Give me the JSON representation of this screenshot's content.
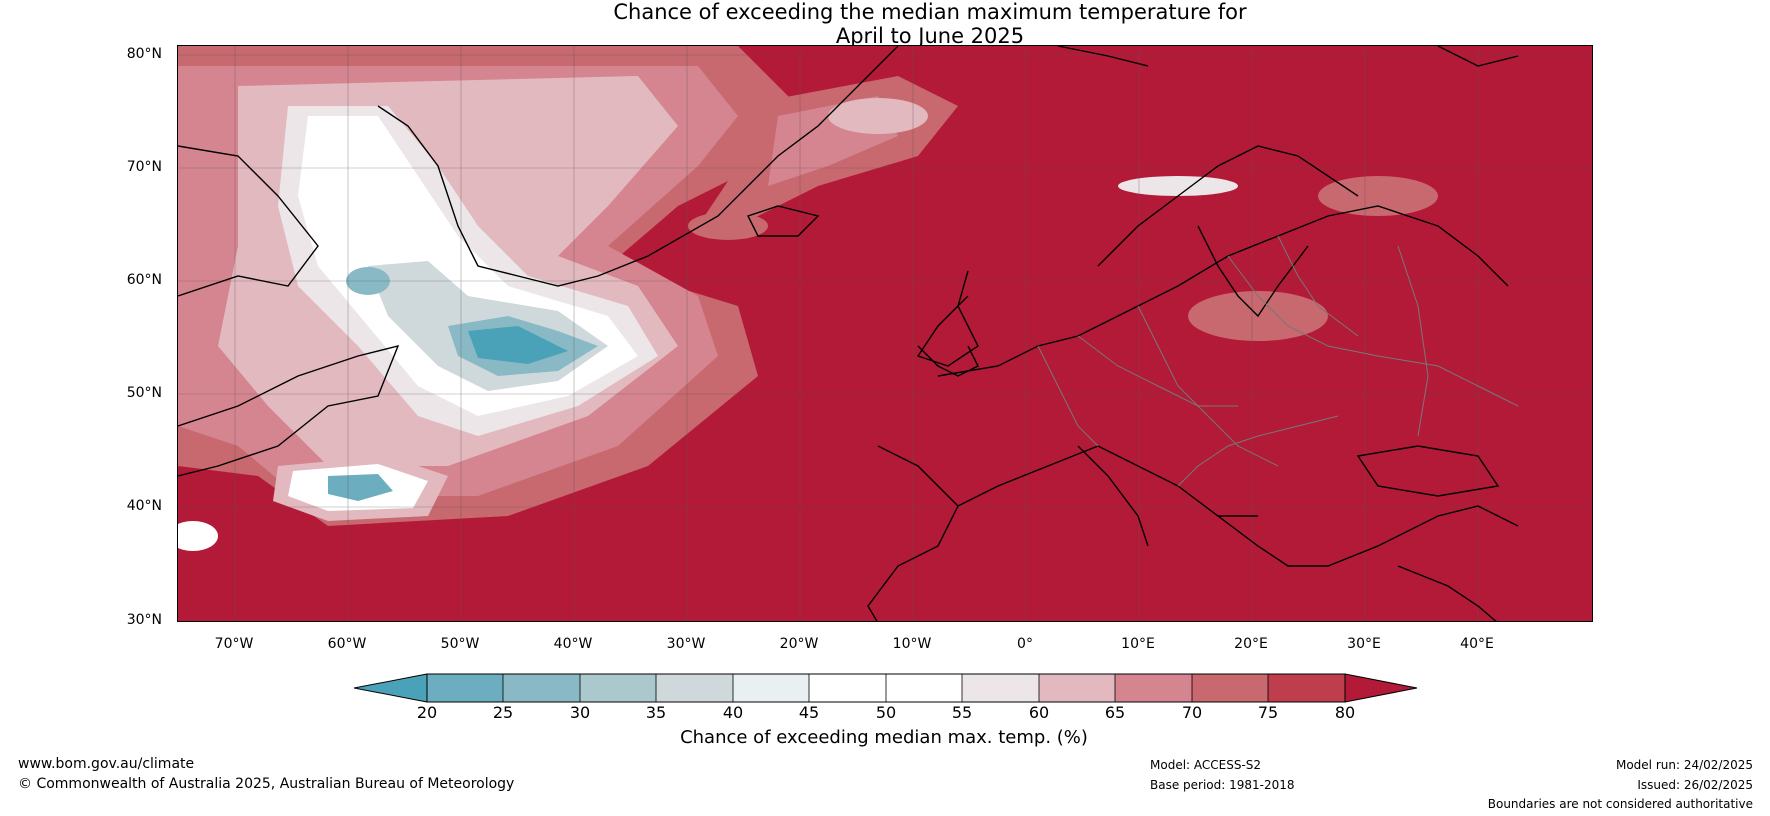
{
  "title": {
    "line1": "Chance of exceeding the median maximum temperature for",
    "line2": "April to June 2025"
  },
  "map": {
    "lat_labels": [
      "80°N",
      "70°N",
      "60°N",
      "50°N",
      "40°N",
      "30°N"
    ],
    "lon_labels": [
      "70°W",
      "60°W",
      "50°W",
      "40°W",
      "30°W",
      "20°W",
      "10°W",
      "0°",
      "10°E",
      "20°E",
      "30°E",
      "40°E"
    ],
    "colors": {
      "c20": "#4aa2b8",
      "c25": "#6cadbf",
      "c30": "#8ab9c6",
      "c35": "#abc8cd",
      "c40": "#cfd9dc",
      "c45": "#e8f0f1",
      "c50": "#ffffff",
      "c55": "#ffffff",
      "c60": "#ece6e8",
      "c65": "#e3b9c0",
      "c70": "#d5858f",
      "c75": "#c8686f",
      "c80": "#bf3e4d",
      "high": "#b31a38"
    }
  },
  "colorbar": {
    "ticks": [
      "20",
      "25",
      "30",
      "35",
      "40",
      "45",
      "50",
      "55",
      "60",
      "65",
      "70",
      "75",
      "80"
    ],
    "label": "Chance of exceeding median max. temp. (%)"
  },
  "footer": {
    "website": "www.bom.gov.au/climate",
    "copyright": "© Commonwealth of Australia 2025, Australian Bureau of Meteorology",
    "model": "Model: ACCESS-S2",
    "base_period": "Base period: 1981-2018",
    "model_run": "Model run: 24/02/2025",
    "issued": "Issued: 26/02/2025",
    "disclaimer": "Boundaries are not considered authoritative"
  }
}
